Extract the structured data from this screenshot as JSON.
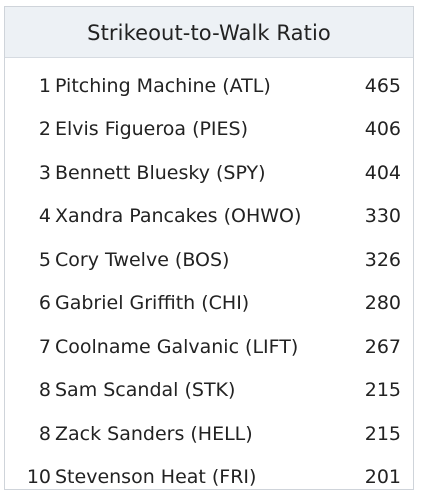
{
  "leaderboard": {
    "title": "Strikeout-to-Walk Ratio",
    "rows": [
      {
        "rank": "1",
        "player": "Pitching Machine (ATL)",
        "value": "465"
      },
      {
        "rank": "2",
        "player": "Elvis Figueroa (PIES)",
        "value": "406"
      },
      {
        "rank": "3",
        "player": "Bennett Bluesky (SPY)",
        "value": "404"
      },
      {
        "rank": "4",
        "player": "Xandra Pancakes (OHWO)",
        "value": "330"
      },
      {
        "rank": "5",
        "player": "Cory Twelve (BOS)",
        "value": "326"
      },
      {
        "rank": "6",
        "player": "Gabriel Griffith (CHI)",
        "value": "280"
      },
      {
        "rank": "7",
        "player": "Coolname Galvanic (LIFT)",
        "value": "267"
      },
      {
        "rank": "8",
        "player": "Sam Scandal (STK)",
        "value": "215"
      },
      {
        "rank": "8",
        "player": "Zack Sanders (HELL)",
        "value": "215"
      },
      {
        "rank": "10",
        "player": "Stevenson Heat (FRI)",
        "value": "201"
      }
    ]
  }
}
